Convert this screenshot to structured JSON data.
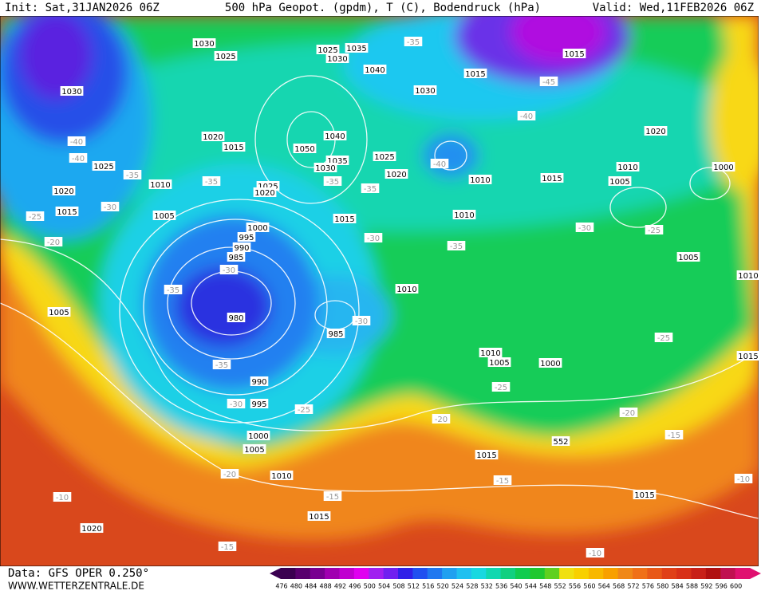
{
  "header": {
    "init": "Init: Sat,31JAN2026 06Z",
    "title": "500 hPa Geopot. (gpdm), T (C), Bodendruck (hPa)",
    "valid": "Valid: Wed,11FEB2026 06Z"
  },
  "footer": {
    "data": "Data: GFS OPER 0.250°",
    "site": "WWW.WETTERZENTRALE.DE"
  },
  "colorbar": {
    "labels": [
      "476",
      "480",
      "484",
      "488",
      "492",
      "496",
      "500",
      "504",
      "508",
      "512",
      "516",
      "520",
      "524",
      "528",
      "532",
      "536",
      "540",
      "544",
      "548",
      "552",
      "556",
      "560",
      "564",
      "568",
      "572",
      "576",
      "580",
      "584",
      "588",
      "592",
      "596",
      "600"
    ]
  },
  "pressure_labels": [
    "1030",
    "1025",
    "1025",
    "1035",
    "1030",
    "1040",
    "1015",
    "1015",
    "1030",
    "1030",
    "1020",
    "1015",
    "1040",
    "1050",
    "1035",
    "1030",
    "1025",
    "1020",
    "1025",
    "1020",
    "1025",
    "1010",
    "1020",
    "1015",
    "1005",
    "1015",
    "1010",
    "1015",
    "1020",
    "1010",
    "1005",
    "1000",
    "1010",
    "1000",
    "995",
    "990",
    "985",
    "1010",
    "980",
    "985",
    "1005",
    "1010",
    "1005",
    "1010",
    "1005",
    "1000",
    "1015",
    "990",
    "995",
    "1000",
    "1005",
    "1010",
    "1015",
    "1015",
    "1015",
    "1020"
  ],
  "temperature_labels": [
    "-35",
    "-45",
    "-40",
    "-40",
    "-40",
    "-35",
    "-35",
    "-35",
    "-35",
    "-40",
    "-30",
    "-25",
    "-20",
    "-30",
    "-35",
    "-30",
    "-25",
    "-30",
    "-35",
    "-30",
    "-35",
    "-25",
    "-30",
    "-25",
    "-25",
    "-20",
    "-20",
    "-15",
    "-20",
    "-15",
    "-15",
    "-10",
    "-10",
    "-15",
    "-10"
  ],
  "height_label": "552"
}
